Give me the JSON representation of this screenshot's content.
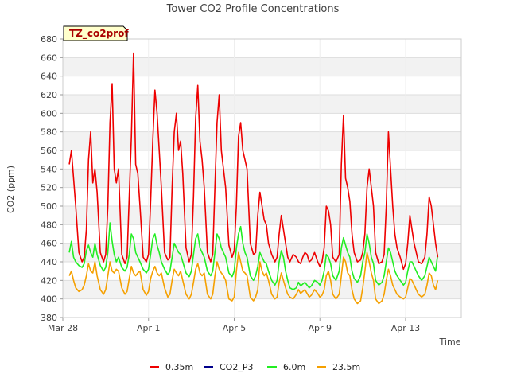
{
  "chart_data": {
    "type": "line",
    "title": "Tower CO2 Profile Concentrations",
    "tag": "TZ_co2prof",
    "xlabel": "Time",
    "ylabel": "CO2 (ppm)",
    "ylim": [
      380,
      680
    ],
    "yticks": [
      380,
      400,
      420,
      440,
      460,
      480,
      500,
      520,
      540,
      560,
      580,
      600,
      620,
      640,
      660,
      680
    ],
    "xlim": [
      0,
      18.6
    ],
    "xticks": [
      {
        "day": 0,
        "label": "Mar 28"
      },
      {
        "day": 4,
        "label": "Apr 1"
      },
      {
        "day": 8,
        "label": "Apr 5"
      },
      {
        "day": 12,
        "label": "Apr 9"
      },
      {
        "day": 16,
        "label": "Apr 13"
      }
    ],
    "series": [
      {
        "name": "0.35m",
        "color": "#ee0000",
        "x": [
          0.3,
          0.4,
          0.5,
          0.6,
          0.75,
          0.9,
          1.0,
          1.1,
          1.2,
          1.3,
          1.4,
          1.5,
          1.6,
          1.75,
          1.9,
          2.0,
          2.1,
          2.2,
          2.3,
          2.4,
          2.5,
          2.6,
          2.75,
          2.9,
          3.0,
          3.1,
          3.2,
          3.3,
          3.4,
          3.5,
          3.6,
          3.75,
          3.9,
          4.0,
          4.1,
          4.2,
          4.3,
          4.4,
          4.5,
          4.6,
          4.75,
          4.9,
          5.0,
          5.1,
          5.2,
          5.3,
          5.4,
          5.5,
          5.6,
          5.75,
          5.9,
          6.0,
          6.1,
          6.2,
          6.3,
          6.4,
          6.5,
          6.6,
          6.75,
          6.9,
          7.0,
          7.1,
          7.2,
          7.3,
          7.4,
          7.5,
          7.6,
          7.75,
          7.9,
          8.0,
          8.1,
          8.2,
          8.3,
          8.4,
          8.5,
          8.6,
          8.75,
          8.9,
          9.0,
          9.1,
          9.2,
          9.3,
          9.4,
          9.5,
          9.6,
          9.75,
          9.9,
          10.0,
          10.1,
          10.2,
          10.3,
          10.4,
          10.5,
          10.6,
          10.75,
          10.9,
          11.0,
          11.1,
          11.2,
          11.3,
          11.4,
          11.5,
          11.6,
          11.75,
          11.9,
          12.0,
          12.1,
          12.2,
          12.3,
          12.4,
          12.5,
          12.6,
          12.75,
          12.9,
          13.0,
          13.1,
          13.2,
          13.3,
          13.4,
          13.5,
          13.6,
          13.75,
          13.9,
          14.0,
          14.1,
          14.2,
          14.3,
          14.4,
          14.5,
          14.6,
          14.75,
          14.9,
          15.0,
          15.1,
          15.2,
          15.3,
          15.4,
          15.5,
          15.6,
          15.75,
          15.9,
          16.0,
          16.1,
          16.2,
          16.3,
          16.4,
          16.5,
          16.6,
          16.75,
          16.9,
          17.0,
          17.1,
          17.2,
          17.3,
          17.4,
          17.5
        ],
        "values": [
          545,
          560,
          530,
          500,
          450,
          440,
          445,
          475,
          550,
          580,
          525,
          540,
          515,
          450,
          440,
          448,
          500,
          590,
          632,
          540,
          525,
          540,
          448,
          438,
          445,
          510,
          575,
          665,
          545,
          535,
          500,
          445,
          440,
          448,
          505,
          570,
          625,
          600,
          560,
          520,
          450,
          442,
          445,
          520,
          580,
          600,
          560,
          570,
          535,
          455,
          440,
          448,
          510,
          595,
          630,
          570,
          550,
          520,
          450,
          440,
          448,
          520,
          590,
          620,
          560,
          540,
          520,
          458,
          445,
          452,
          500,
          575,
          590,
          560,
          550,
          540,
          460,
          448,
          450,
          490,
          515,
          500,
          485,
          480,
          460,
          448,
          440,
          445,
          470,
          490,
          475,
          460,
          445,
          440,
          448,
          445,
          440,
          438,
          445,
          450,
          448,
          440,
          442,
          450,
          440,
          435,
          440,
          455,
          500,
          495,
          480,
          445,
          440,
          448,
          545,
          598,
          530,
          520,
          505,
          470,
          450,
          440,
          442,
          450,
          470,
          520,
          540,
          520,
          500,
          450,
          438,
          440,
          448,
          500,
          580,
          540,
          500,
          470,
          455,
          445,
          432,
          438,
          460,
          490,
          475,
          460,
          450,
          440,
          438,
          445,
          470,
          510,
          500,
          480,
          460,
          445
        ]
      },
      {
        "name": "CO2_P3",
        "color": "#00008b",
        "x": [],
        "values": []
      },
      {
        "name": "6.0m",
        "color": "#22ee22",
        "x": [
          0.3,
          0.4,
          0.5,
          0.6,
          0.75,
          0.9,
          1.0,
          1.1,
          1.2,
          1.3,
          1.4,
          1.5,
          1.6,
          1.75,
          1.9,
          2.0,
          2.1,
          2.2,
          2.3,
          2.4,
          2.5,
          2.6,
          2.75,
          2.9,
          3.0,
          3.1,
          3.2,
          3.3,
          3.4,
          3.5,
          3.6,
          3.75,
          3.9,
          4.0,
          4.1,
          4.2,
          4.3,
          4.4,
          4.5,
          4.6,
          4.75,
          4.9,
          5.0,
          5.1,
          5.2,
          5.3,
          5.4,
          5.5,
          5.6,
          5.75,
          5.9,
          6.0,
          6.1,
          6.2,
          6.3,
          6.4,
          6.5,
          6.6,
          6.75,
          6.9,
          7.0,
          7.1,
          7.2,
          7.3,
          7.4,
          7.5,
          7.6,
          7.75,
          7.9,
          8.0,
          8.1,
          8.2,
          8.3,
          8.4,
          8.5,
          8.6,
          8.75,
          8.9,
          9.0,
          9.1,
          9.2,
          9.3,
          9.4,
          9.5,
          9.6,
          9.75,
          9.9,
          10.0,
          10.1,
          10.2,
          10.3,
          10.4,
          10.5,
          10.6,
          10.75,
          10.9,
          11.0,
          11.1,
          11.2,
          11.3,
          11.4,
          11.5,
          11.6,
          11.75,
          11.9,
          12.0,
          12.1,
          12.2,
          12.3,
          12.4,
          12.5,
          12.6,
          12.75,
          12.9,
          13.0,
          13.1,
          13.2,
          13.3,
          13.4,
          13.5,
          13.6,
          13.75,
          13.9,
          14.0,
          14.1,
          14.2,
          14.3,
          14.4,
          14.5,
          14.6,
          14.75,
          14.9,
          15.0,
          15.1,
          15.2,
          15.3,
          15.4,
          15.5,
          15.6,
          15.75,
          15.9,
          16.0,
          16.1,
          16.2,
          16.3,
          16.4,
          16.5,
          16.6,
          16.75,
          16.9,
          17.0,
          17.1,
          17.2,
          17.3,
          17.4,
          17.5
        ],
        "values": [
          450,
          462,
          445,
          440,
          436,
          434,
          438,
          452,
          458,
          450,
          445,
          460,
          448,
          436,
          430,
          434,
          450,
          482,
          462,
          448,
          440,
          445,
          434,
          430,
          434,
          448,
          470,
          465,
          450,
          445,
          440,
          432,
          428,
          432,
          448,
          465,
          470,
          458,
          450,
          440,
          432,
          426,
          430,
          445,
          460,
          455,
          450,
          448,
          440,
          428,
          424,
          430,
          448,
          465,
          470,
          455,
          450,
          445,
          430,
          425,
          430,
          450,
          470,
          465,
          455,
          450,
          445,
          428,
          424,
          430,
          455,
          470,
          478,
          460,
          450,
          445,
          425,
          420,
          425,
          435,
          450,
          445,
          440,
          438,
          430,
          420,
          415,
          420,
          440,
          452,
          445,
          430,
          420,
          412,
          410,
          412,
          418,
          414,
          416,
          418,
          415,
          412,
          414,
          420,
          418,
          415,
          420,
          430,
          448,
          445,
          438,
          425,
          420,
          430,
          455,
          466,
          458,
          450,
          445,
          430,
          422,
          418,
          425,
          440,
          450,
          470,
          460,
          445,
          438,
          420,
          415,
          418,
          425,
          440,
          455,
          450,
          440,
          430,
          425,
          420,
          415,
          418,
          430,
          440,
          440,
          435,
          430,
          425,
          420,
          425,
          435,
          445,
          440,
          435,
          430,
          448
        ]
      },
      {
        "name": "23.5m",
        "color": "#f5a000",
        "x": [
          0.3,
          0.4,
          0.5,
          0.6,
          0.75,
          0.9,
          1.0,
          1.1,
          1.2,
          1.3,
          1.4,
          1.5,
          1.6,
          1.75,
          1.9,
          2.0,
          2.1,
          2.2,
          2.3,
          2.4,
          2.5,
          2.6,
          2.75,
          2.9,
          3.0,
          3.1,
          3.2,
          3.3,
          3.4,
          3.5,
          3.6,
          3.75,
          3.9,
          4.0,
          4.1,
          4.2,
          4.3,
          4.4,
          4.5,
          4.6,
          4.75,
          4.9,
          5.0,
          5.1,
          5.2,
          5.3,
          5.4,
          5.5,
          5.6,
          5.75,
          5.9,
          6.0,
          6.1,
          6.2,
          6.3,
          6.4,
          6.5,
          6.6,
          6.75,
          6.9,
          7.0,
          7.1,
          7.2,
          7.3,
          7.4,
          7.5,
          7.6,
          7.75,
          7.9,
          8.0,
          8.1,
          8.2,
          8.3,
          8.4,
          8.5,
          8.6,
          8.75,
          8.9,
          9.0,
          9.1,
          9.2,
          9.3,
          9.4,
          9.5,
          9.6,
          9.75,
          9.9,
          10.0,
          10.1,
          10.2,
          10.3,
          10.4,
          10.5,
          10.6,
          10.75,
          10.9,
          11.0,
          11.1,
          11.2,
          11.3,
          11.4,
          11.5,
          11.6,
          11.75,
          11.9,
          12.0,
          12.1,
          12.2,
          12.3,
          12.4,
          12.5,
          12.6,
          12.75,
          12.9,
          13.0,
          13.1,
          13.2,
          13.3,
          13.4,
          13.5,
          13.6,
          13.75,
          13.9,
          14.0,
          14.1,
          14.2,
          14.3,
          14.4,
          14.5,
          14.6,
          14.75,
          14.9,
          15.0,
          15.1,
          15.2,
          15.3,
          15.4,
          15.5,
          15.6,
          15.75,
          15.9,
          16.0,
          16.1,
          16.2,
          16.3,
          16.4,
          16.5,
          16.6,
          16.75,
          16.9,
          17.0,
          17.1,
          17.2,
          17.3,
          17.4,
          17.5
        ],
        "values": [
          425,
          430,
          420,
          412,
          408,
          410,
          415,
          425,
          438,
          430,
          428,
          440,
          425,
          410,
          405,
          410,
          425,
          440,
          430,
          428,
          432,
          430,
          412,
          405,
          408,
          422,
          435,
          428,
          425,
          428,
          430,
          410,
          404,
          408,
          422,
          430,
          435,
          428,
          425,
          428,
          412,
          402,
          405,
          420,
          432,
          428,
          425,
          430,
          420,
          405,
          400,
          405,
          418,
          432,
          438,
          428,
          425,
          428,
          405,
          400,
          405,
          425,
          440,
          432,
          428,
          425,
          420,
          400,
          398,
          402,
          430,
          450,
          440,
          430,
          428,
          425,
          402,
          398,
          402,
          410,
          440,
          430,
          425,
          428,
          420,
          405,
          400,
          402,
          418,
          428,
          420,
          412,
          405,
          402,
          400,
          405,
          410,
          406,
          408,
          410,
          406,
          402,
          404,
          410,
          406,
          402,
          404,
          410,
          425,
          430,
          420,
          405,
          400,
          405,
          425,
          445,
          440,
          428,
          425,
          410,
          400,
          395,
          398,
          412,
          430,
          450,
          440,
          428,
          420,
          400,
          395,
          398,
          405,
          420,
          432,
          425,
          415,
          410,
          405,
          402,
          400,
          402,
          412,
          422,
          420,
          415,
          410,
          405,
          402,
          405,
          415,
          428,
          425,
          415,
          410,
          420
        ]
      }
    ],
    "legend": {
      "position": "bottom"
    },
    "grid": true
  }
}
